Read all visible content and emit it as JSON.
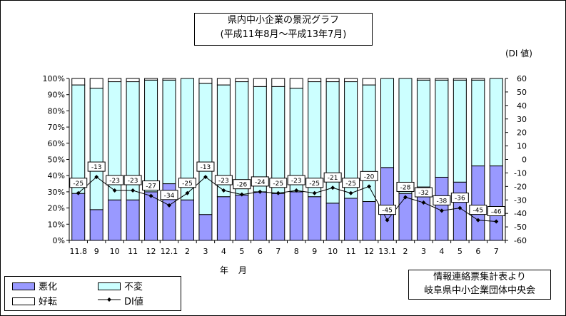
{
  "title_lines": [
    "県内中小企業の景況グラフ",
    "(平成11年8月～平成13年7月)"
  ],
  "di_unit_label": "(DI 値)",
  "x_unit_label": "年 月",
  "source_lines": [
    "情報連絡票集計表より",
    "岐阜県中小企業団体中央会"
  ],
  "legend": {
    "bad": "悪化",
    "unchanged": "不変",
    "good": "好転",
    "di": "DI値"
  },
  "colors": {
    "bad": "#9999ff",
    "unchanged": "#ccffff",
    "good": "#ffffff",
    "line": "#000000"
  },
  "chart_data": {
    "type": "bar",
    "stacked": true,
    "categories": [
      "11.8",
      "9",
      "10",
      "11",
      "12",
      "12.1",
      "2",
      "3",
      "4",
      "5",
      "6",
      "7",
      "8",
      "9",
      "10",
      "11",
      "12",
      "13.1",
      "2",
      "3",
      "4",
      "5",
      "6",
      "7"
    ],
    "series": [
      {
        "name": "悪化",
        "values": [
          29,
          19,
          25,
          25,
          30,
          35,
          25,
          16,
          27,
          28,
          30,
          29,
          30,
          27,
          23,
          26,
          24,
          45,
          29,
          33,
          39,
          36,
          46,
          46
        ]
      },
      {
        "name": "不変",
        "values": [
          67,
          75,
          73,
          73,
          69,
          64,
          75,
          81,
          69,
          70,
          65,
          66,
          64,
          71,
          75,
          72,
          72,
          55,
          71,
          66,
          60,
          63,
          53,
          54
        ]
      },
      {
        "name": "好転",
        "values": [
          4,
          6,
          2,
          2,
          1,
          1,
          0,
          3,
          4,
          2,
          5,
          5,
          6,
          2,
          2,
          2,
          4,
          0,
          0,
          1,
          1,
          1,
          1,
          0
        ]
      },
      {
        "name": "DI値",
        "type": "line",
        "axis": "right",
        "values": [
          -25,
          -13,
          -23,
          -23,
          -27,
          -34,
          -25,
          -13,
          -23,
          -26,
          -24,
          -25,
          -23,
          -25,
          -21,
          -25,
          -20,
          -45,
          -28,
          -32,
          -38,
          -36,
          -45,
          -46
        ]
      }
    ],
    "left_axis": {
      "range": [
        0,
        100
      ],
      "ticks": [
        "0%",
        "10%",
        "20%",
        "30%",
        "40%",
        "50%",
        "60%",
        "70%",
        "80%",
        "90%",
        "100%"
      ]
    },
    "right_axis": {
      "range": [
        -60,
        60
      ],
      "ticks": [
        "60",
        "50",
        "40",
        "30",
        "20",
        "10",
        "0",
        "-10",
        "-20",
        "-30",
        "-40",
        "-50",
        "-60"
      ]
    }
  }
}
